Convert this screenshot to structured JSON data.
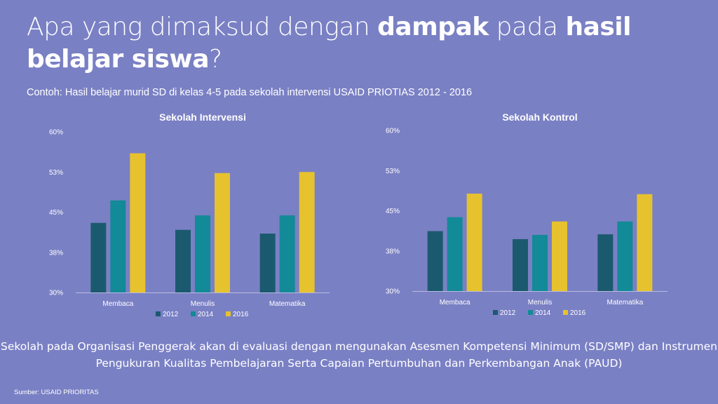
{
  "title": {
    "part1": "Apa yang dimaksud dengan ",
    "bold1": "dampak",
    "part2": " pada ",
    "bold2": "hasil belajar siswa",
    "part3": "?"
  },
  "subtitle": "Contoh: Hasil belajar murid SD di kelas 4-5 pada sekolah intervensi USAID PRIOTIAS 2012 - 2016",
  "colors": {
    "2012": "#1b5a6e",
    "2014": "#138a97",
    "2016": "#e6c22e"
  },
  "chart_data": [
    {
      "type": "bar",
      "title": "Sekolah Intervensi",
      "categories": [
        "Membaca",
        "Menulis",
        "Matematika"
      ],
      "yticks": [
        "60%",
        "53%",
        "45%",
        "38%",
        "30%"
      ],
      "ylim": [
        30,
        60
      ],
      "series": [
        {
          "name": "2012",
          "values": [
            43,
            41.7,
            41
          ]
        },
        {
          "name": "2014",
          "values": [
            47.2,
            44.4,
            44.4
          ]
        },
        {
          "name": "2016",
          "values": [
            56,
            52.3,
            52.5
          ]
        }
      ],
      "legend": "bottom"
    },
    {
      "type": "bar",
      "title": "Sekolah Kontrol",
      "categories": [
        "Membaca",
        "Menulis",
        "Matematika"
      ],
      "yticks": [
        "60%",
        "53%",
        "45%",
        "38%",
        "30%"
      ],
      "ylim": [
        30,
        60
      ],
      "series": [
        {
          "name": "2012",
          "values": [
            41.2,
            39.7,
            40.6
          ]
        },
        {
          "name": "2014",
          "values": [
            43.8,
            40.5,
            43
          ]
        },
        {
          "name": "2016",
          "values": [
            48.2,
            43,
            48.1
          ]
        }
      ],
      "legend": "bottom"
    }
  ],
  "note": "Sekolah pada Organisasi Penggerak akan di evaluasi dengan mengunakan Asesmen Kompetensi Minimum (SD/SMP) dan Instrumen Pengukuran Kualitas Pembelajaran Serta Capaian Pertumbuhan dan Perkembangan Anak (PAUD)",
  "source": "Sumber: USAID PRIORITAS"
}
